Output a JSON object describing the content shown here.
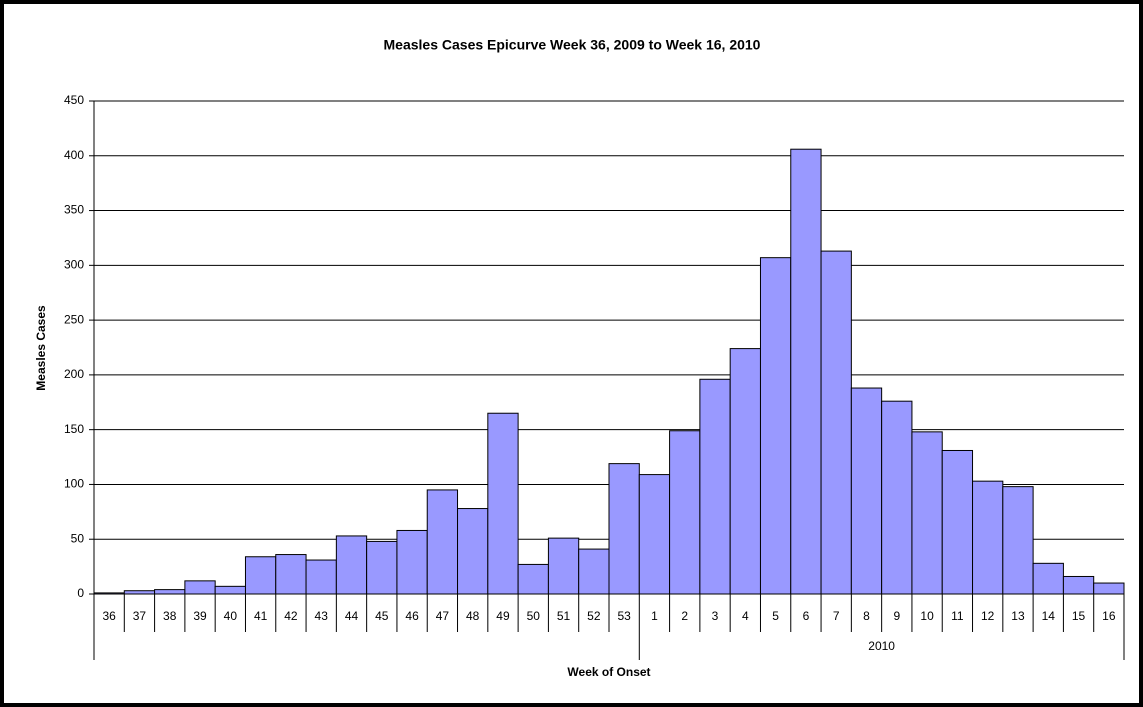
{
  "chart_data": {
    "type": "bar",
    "title": "Measles Cases Epicurve Week 36, 2009 to Week 16, 2010",
    "y_label": "Measles Cases",
    "x_label": "Week of Onset",
    "category_groups": [
      {
        "label": null,
        "categories": [
          "36",
          "37",
          "38",
          "39",
          "40",
          "41",
          "42",
          "43",
          "44",
          "45",
          "46",
          "47",
          "48",
          "49",
          "50",
          "51",
          "52",
          "53"
        ]
      },
      {
        "label": "2010",
        "categories": [
          "1",
          "2",
          "3",
          "4",
          "5",
          "6",
          "7",
          "8",
          "9",
          "10",
          "11",
          "12",
          "13",
          "14",
          "15",
          "16"
        ]
      }
    ],
    "values": [
      1,
      3,
      4,
      12,
      7,
      34,
      36,
      31,
      53,
      48,
      58,
      95,
      78,
      165,
      27,
      51,
      41,
      119,
      109,
      149,
      196,
      224,
      307,
      406,
      313,
      188,
      176,
      148,
      131,
      103,
      98,
      28,
      16,
      10
    ],
    "color": "#9999ff",
    "ylim": [
      0,
      450
    ],
    "yticks": [
      0,
      50,
      100,
      150,
      200,
      250,
      300,
      350,
      400,
      450
    ],
    "grid": true
  }
}
